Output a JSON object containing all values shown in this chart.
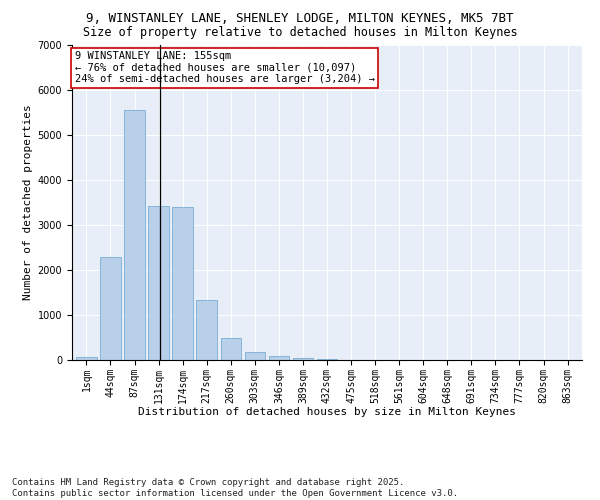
{
  "title1": "9, WINSTANLEY LANE, SHENLEY LODGE, MILTON KEYNES, MK5 7BT",
  "title2": "Size of property relative to detached houses in Milton Keynes",
  "xlabel": "Distribution of detached houses by size in Milton Keynes",
  "ylabel": "Number of detached properties",
  "categories": [
    "1sqm",
    "44sqm",
    "87sqm",
    "131sqm",
    "174sqm",
    "217sqm",
    "260sqm",
    "303sqm",
    "346sqm",
    "389sqm",
    "432sqm",
    "475sqm",
    "518sqm",
    "561sqm",
    "604sqm",
    "648sqm",
    "691sqm",
    "734sqm",
    "777sqm",
    "820sqm",
    "863sqm"
  ],
  "values": [
    70,
    2300,
    5560,
    3420,
    3400,
    1330,
    500,
    170,
    90,
    55,
    20,
    0,
    0,
    0,
    0,
    0,
    0,
    0,
    0,
    0,
    0
  ],
  "bar_color": "#b8d0ea",
  "bar_edge_color": "#7aadd4",
  "annotation_text": "9 WINSTANLEY LANE: 155sqm\n← 76% of detached houses are smaller (10,097)\n24% of semi-detached houses are larger (3,204) →",
  "annotation_box_color": "#ffffff",
  "annotation_box_edge_color": "#cc0000",
  "ylim": [
    0,
    7000
  ],
  "yticks": [
    0,
    1000,
    2000,
    3000,
    4000,
    5000,
    6000,
    7000
  ],
  "bg_color": "#e8eef8",
  "footer": "Contains HM Land Registry data © Crown copyright and database right 2025.\nContains public sector information licensed under the Open Government Licence v3.0.",
  "title1_fontsize": 9,
  "title2_fontsize": 8.5,
  "xlabel_fontsize": 8,
  "ylabel_fontsize": 8,
  "tick_fontsize": 7,
  "annotation_fontsize": 7.5,
  "footer_fontsize": 6.5
}
